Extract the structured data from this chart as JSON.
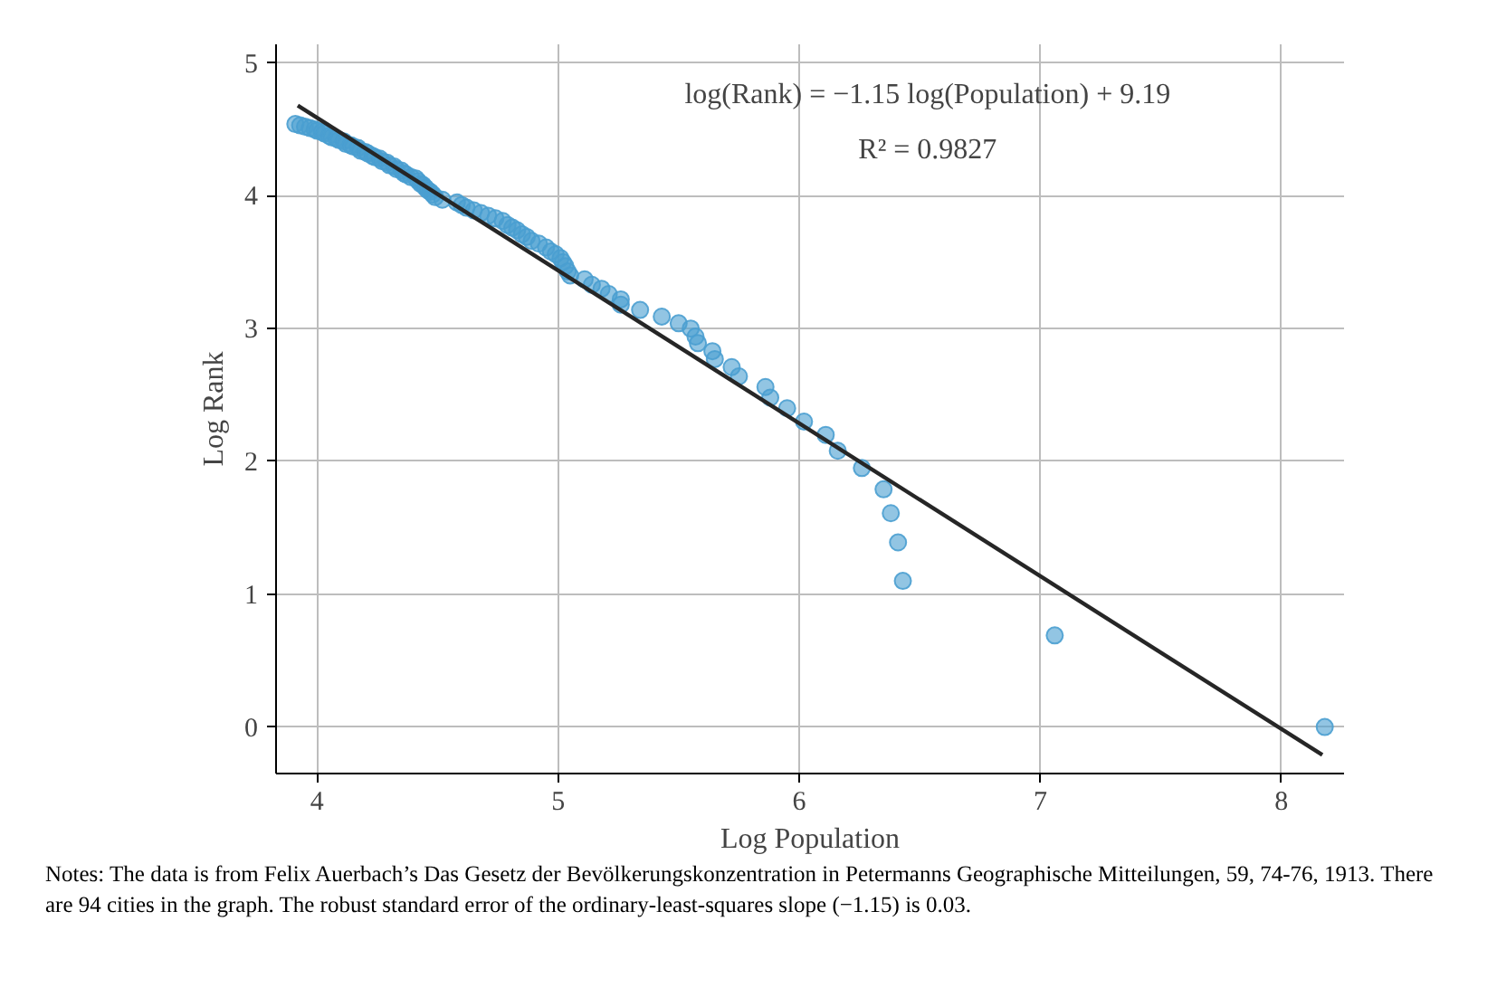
{
  "chart_data": {
    "type": "scatter",
    "xlabel": "Log Population",
    "ylabel": "Log Rank",
    "xlim": [
      3.83,
      8.26
    ],
    "ylim": [
      -0.35,
      5.14
    ],
    "xticks": [
      4,
      5,
      6,
      7,
      8
    ],
    "yticks": [
      0,
      1,
      2,
      3,
      4,
      5
    ],
    "grid": true,
    "marker": "circle",
    "series": [
      {
        "color": "#4a9fd0",
        "x": [
          8.18,
          7.06,
          6.43,
          6.41,
          6.38,
          6.35,
          6.26,
          6.16,
          6.11,
          6.02,
          5.95,
          5.88,
          5.86,
          5.75,
          5.72,
          5.65,
          5.64,
          5.58,
          5.57,
          5.55,
          5.5,
          5.43,
          5.34,
          5.26,
          5.26,
          5.21,
          5.18,
          5.14,
          5.11,
          5.05,
          5.04,
          5.03,
          5.02,
          5.01,
          4.99,
          4.97,
          4.95,
          4.92,
          4.89,
          4.87,
          4.85,
          4.83,
          4.81,
          4.79,
          4.77,
          4.74,
          4.71,
          4.68,
          4.65,
          4.62,
          4.6,
          4.58,
          4.52,
          4.49,
          4.48,
          4.47,
          4.46,
          4.45,
          4.44,
          4.43,
          4.42,
          4.41,
          4.39,
          4.37,
          4.36,
          4.35,
          4.33,
          4.32,
          4.3,
          4.29,
          4.27,
          4.26,
          4.24,
          4.23,
          4.21,
          4.2,
          4.18,
          4.17,
          4.15,
          4.14,
          4.12,
          4.11,
          4.09,
          4.08,
          4.06,
          4.05,
          4.03,
          4.02,
          4.0,
          3.99,
          3.97,
          3.95,
          3.93,
          3.91
        ],
        "values": [
          0,
          0.69,
          1.1,
          1.39,
          1.61,
          1.79,
          1.95,
          2.08,
          2.2,
          2.3,
          2.4,
          2.48,
          2.56,
          2.64,
          2.71,
          2.77,
          2.83,
          2.89,
          2.94,
          3.0,
          3.04,
          3.09,
          3.14,
          3.18,
          3.22,
          3.26,
          3.3,
          3.33,
          3.37,
          3.4,
          3.43,
          3.47,
          3.5,
          3.53,
          3.56,
          3.58,
          3.61,
          3.64,
          3.66,
          3.69,
          3.71,
          3.74,
          3.76,
          3.78,
          3.81,
          3.83,
          3.85,
          3.87,
          3.89,
          3.91,
          3.93,
          3.95,
          3.97,
          3.99,
          4.01,
          4.03,
          4.04,
          4.06,
          4.08,
          4.09,
          4.11,
          4.13,
          4.14,
          4.16,
          4.17,
          4.19,
          4.2,
          4.22,
          4.23,
          4.25,
          4.26,
          4.28,
          4.29,
          4.3,
          4.32,
          4.33,
          4.34,
          4.36,
          4.37,
          4.38,
          4.39,
          4.41,
          4.42,
          4.43,
          4.44,
          4.45,
          4.47,
          4.48,
          4.49,
          4.5,
          4.51,
          4.52,
          4.53,
          4.54
        ]
      },
      {
        "type": "line",
        "marker": "none",
        "color": "#262626",
        "x": [
          3.92,
          8.17
        ],
        "values": [
          4.68,
          -0.21
        ]
      }
    ],
    "annotations": [
      "log(Rank) = −1.15 log(Population) + 9.19",
      "R² = 0.9827",
      "Notes: The data is from Felix Auerbach’s Das Gesetz der Bevölkerungskonzentration in Petermanns Geographische Mitteilungen, 59, 74-76, 1913. There are 94 cities in the graph. The robust standard error of the ordinary-least-squares slope (−1.15) is 0.03."
    ]
  }
}
